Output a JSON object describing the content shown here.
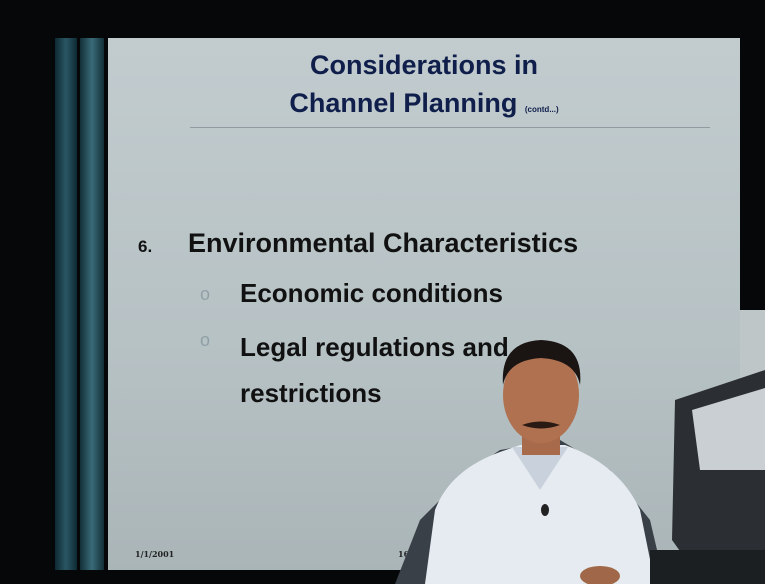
{
  "slide": {
    "title": [
      "Considerations in",
      "Channel Planning"
    ],
    "title_note": "(contd...)",
    "item": {
      "marker": "6.",
      "text": "Environmental Characteristics",
      "subitems": [
        {
          "marker": "o",
          "text": "Economic conditions"
        },
        {
          "marker": "o",
          "text": "Legal regulations and restrictions"
        }
      ]
    },
    "footer": {
      "date": "1/1/2001",
      "page": "16"
    }
  }
}
